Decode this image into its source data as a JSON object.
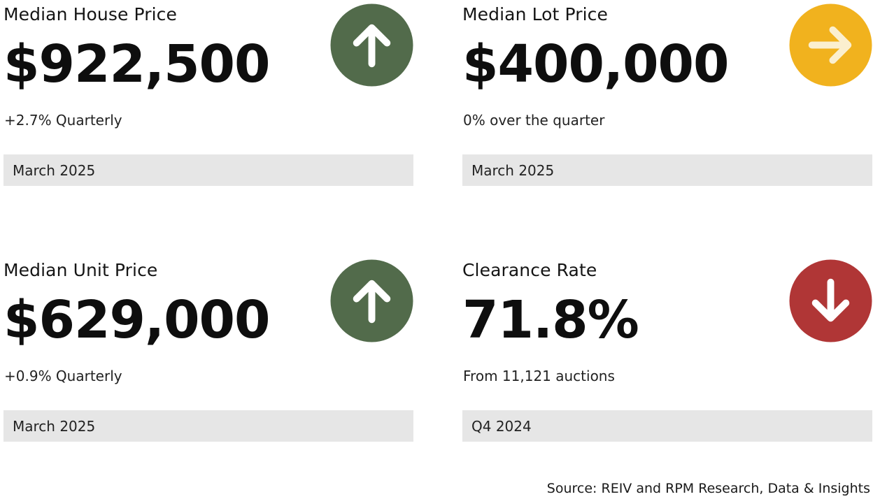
{
  "colors": {
    "up": "#526b4b",
    "flat": "#f1b21e",
    "down": "#b03636",
    "date_bar": "#e6e6e6",
    "flat_arrow": "#fbefcf"
  },
  "cards": [
    {
      "label": "Median House Price",
      "value": "$922,500",
      "change": "+2.7% Quarterly",
      "period": "March 2025",
      "trend_icon": "arrow-up-icon"
    },
    {
      "label": "Median Lot Price",
      "value": "$400,000",
      "change": "0% over the quarter",
      "period": "March 2025",
      "trend_icon": "arrow-right-icon"
    },
    {
      "label": "Median Unit Price",
      "value": "$629,000",
      "change": "+0.9% Quarterly",
      "period": "March 2025",
      "trend_icon": "arrow-up-icon"
    },
    {
      "label": "Clearance Rate",
      "value": "71.8%",
      "change": "From 11,121 auctions",
      "period": "Q4 2024",
      "trend_icon": "arrow-down-icon"
    }
  ],
  "footer": {
    "source": "Source: REIV and RPM Research, Data & Insights"
  }
}
